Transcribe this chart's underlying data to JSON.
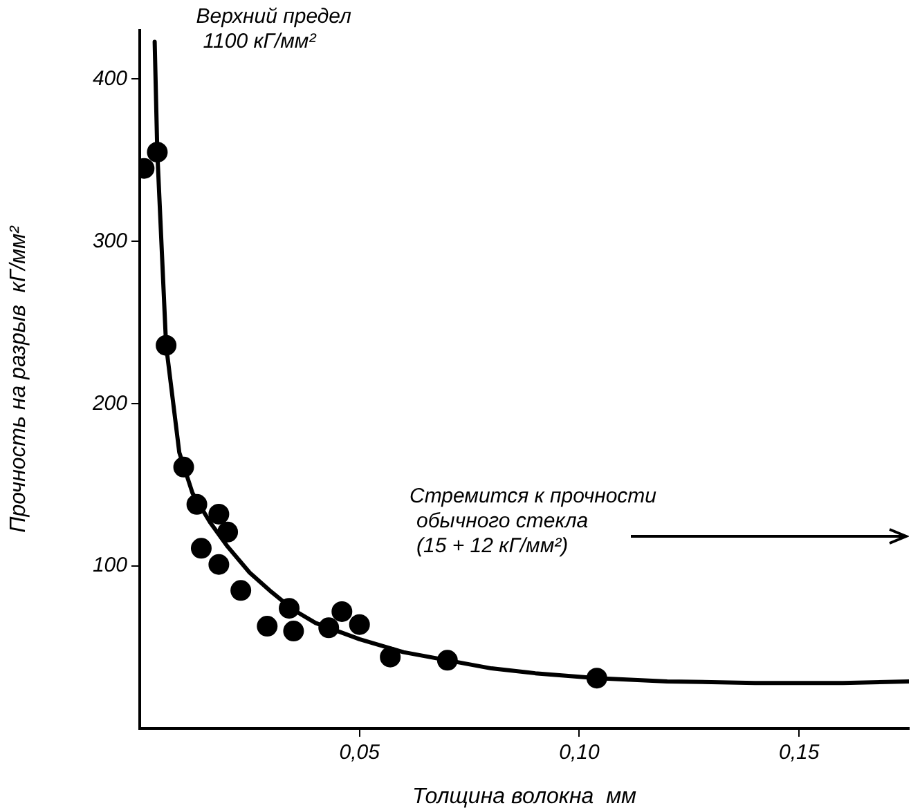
{
  "chart_data": {
    "type": "scatter",
    "xlabel": "Толщина волокна  мм",
    "ylabel": "Прочность на разрыв  кГ/мм²",
    "xlim": [
      0,
      0.175
    ],
    "ylim": [
      0,
      430
    ],
    "xticks": [
      {
        "value": 0.05,
        "label": "0,05"
      },
      {
        "value": 0.1,
        "label": "0,10"
      },
      {
        "value": 0.15,
        "label": "0,15"
      }
    ],
    "yticks": [
      100,
      200,
      300,
      400
    ],
    "grid": false,
    "legend": false,
    "marker": "circle",
    "annotations": [
      {
        "text": "Верхний предел\n1100 кГ/мм²",
        "x": 0.0034,
        "y": 423
      },
      "Стремится к прочности\nобычного стекла\n(15 + 12 кГ/мм²)"
    ],
    "series": [
      {
        "type": "scatter",
        "color": "#000000",
        "x": [
          0.001,
          0.004,
          0.006,
          0.01,
          0.013,
          0.014,
          0.018,
          0.018,
          0.02,
          0.023,
          0.029,
          0.034,
          0.035,
          0.043,
          0.046,
          0.05,
          0.057,
          0.07,
          0.104
        ],
        "values": [
          345,
          355,
          236,
          161,
          138,
          111,
          132,
          101,
          121,
          85,
          63,
          74,
          60,
          62,
          72,
          64,
          44,
          42,
          31
        ]
      },
      {
        "type": "line",
        "color": "#000000",
        "marker": "none",
        "line_style": "solid",
        "x": [
          0.0034,
          0.004,
          0.006,
          0.009,
          0.012,
          0.016,
          0.02,
          0.025,
          0.03,
          0.035,
          0.04,
          0.05,
          0.06,
          0.07,
          0.08,
          0.09,
          0.104,
          0.12,
          0.14,
          0.16,
          0.175
        ],
        "values": [
          423,
          355,
          236,
          170,
          145,
          127,
          112,
          96,
          84,
          73,
          65,
          55,
          47,
          42,
          37,
          34,
          31,
          29,
          28,
          28,
          29
        ]
      }
    ]
  }
}
